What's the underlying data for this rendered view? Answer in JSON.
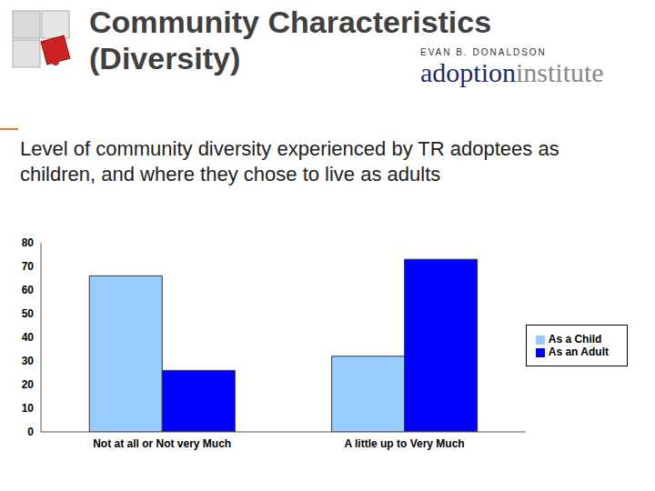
{
  "slide": {
    "title": "Community Characteristics (Diversity)",
    "logo_top": "EVAN B. DONALDSON",
    "logo_name": [
      "adoption",
      "institute"
    ],
    "text": "Level of community diversity experienced by TR adoptees as children, and where they chose to live as adults"
  },
  "chart_data": {
    "type": "bar",
    "categories": [
      "Not at all or Not very Much",
      "A little up to Very Much"
    ],
    "series": [
      {
        "name": "As a Child",
        "color": "#99ccff",
        "values": [
          66,
          32
        ]
      },
      {
        "name": "As an Adult",
        "color": "#0000ff",
        "values": [
          26,
          73
        ]
      }
    ],
    "ylim": [
      0,
      80
    ],
    "yticks": [
      0,
      10,
      20,
      30,
      40,
      50,
      60,
      70,
      80
    ],
    "grid": false,
    "legend": "right"
  }
}
